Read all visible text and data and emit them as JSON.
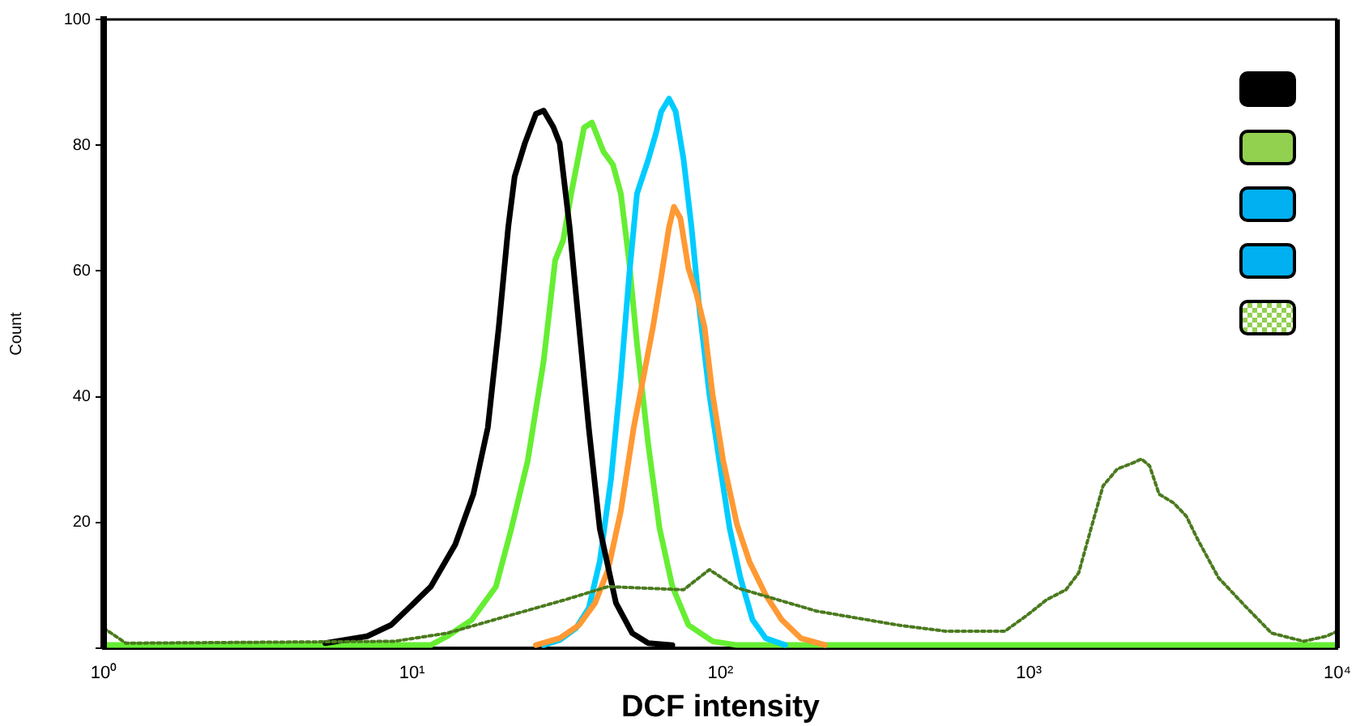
{
  "chart_data": {
    "type": "line",
    "xlabel": "DCF intensity",
    "ylabel": "Count",
    "log": "x",
    "grid": false,
    "marker": "none",
    "xlim": [
      1,
      10000
    ],
    "xticks": [
      {
        "value": 1,
        "label": "10⁰"
      },
      {
        "value": 10,
        "label": "10¹"
      },
      {
        "value": 100,
        "label": "10²"
      },
      {
        "value": 1000,
        "label": "10³"
      },
      {
        "value": 10000,
        "label": "10⁴"
      }
    ],
    "ylim": [
      0,
      100
    ],
    "yticks": [
      {
        "value": 0,
        "label": null
      },
      20,
      40,
      60,
      80,
      100
    ],
    "series": [
      {
        "color": "#4a7a1e",
        "line_style": "dotted",
        "x": [
          1,
          1.18,
          8.77,
          13.0,
          21.0,
          31.3,
          43.2,
          75.9,
          92.0,
          113,
          205,
          374,
          536,
          657,
          835,
          977,
          1140,
          1318,
          1450,
          1576,
          1738,
          1933,
          2180,
          2317,
          2461,
          2642,
          2944,
          3237,
          3524,
          4117,
          5047,
          6115,
          7776,
          9200,
          10000
        ],
        "values": [
          3.2,
          0.8,
          1.1,
          2.4,
          5.3,
          7.7,
          9.8,
          9.3,
          12.5,
          9.6,
          5.9,
          3.7,
          2.7,
          2.7,
          2.7,
          5.1,
          7.7,
          9.3,
          12.0,
          18.4,
          25.8,
          28.5,
          29.5,
          30.1,
          29.0,
          24.5,
          23.1,
          21.0,
          17.3,
          11.2,
          6.6,
          2.4,
          1.1,
          1.9,
          2.7
        ]
      },
      {
        "color": "#000000",
        "line_style": "solid",
        "x": [
          5.23,
          7.15,
          8.55,
          10,
          11.5,
          13.8,
          15.8,
          17.6,
          19.1,
          20.5,
          21.5,
          23.2,
          25.2,
          26.7,
          28.7,
          30.1,
          32.4,
          34.8,
          37.4,
          40.6,
          45.8,
          51.7,
          58.3,
          69.8
        ],
        "values": [
          0.8,
          1.9,
          3.7,
          6.9,
          9.8,
          16.5,
          24.5,
          35.1,
          51.1,
          67,
          75,
          80.3,
          85,
          85.5,
          82.9,
          80.3,
          67,
          51,
          35,
          19,
          7.2,
          2.4,
          0.8,
          0.5
        ]
      },
      {
        "color": "#ff9933",
        "line_style": "solid",
        "x": [
          25.2,
          30.1,
          34.8,
          39.2,
          43.2,
          47.5,
          52.3,
          56.9,
          60.4,
          64.2,
          68.1,
          70.6,
          74.1,
          78.7,
          83.5,
          88.7,
          94.2,
          102,
          113,
          124,
          140,
          158,
          182,
          218
        ],
        "values": [
          0.5,
          1.6,
          3.7,
          7.2,
          12.5,
          21.8,
          35.1,
          44.4,
          51.1,
          59,
          67,
          70.2,
          68.4,
          60.4,
          56.4,
          51.1,
          40.4,
          29.8,
          19.7,
          13.8,
          8.5,
          4.5,
          1.6,
          0.5
        ]
      },
      {
        "color": "#00ccff",
        "line_style": "solid",
        "x": [
          26.7,
          30.1,
          34.0,
          37.4,
          40.6,
          44.2,
          47.5,
          50.5,
          53.6,
          58.3,
          61.9,
          64.2,
          68.1,
          71.5,
          75.9,
          80.5,
          85.5,
          92.0,
          100,
          107,
          116,
          127,
          140,
          162
        ],
        "values": [
          0.5,
          1.3,
          3.2,
          6.4,
          13.8,
          27.1,
          43.1,
          59,
          72.3,
          77.7,
          82.1,
          85.3,
          87.4,
          85.4,
          77.7,
          67,
          53.7,
          40.4,
          28.5,
          19.1,
          11.2,
          4.5,
          1.6,
          0.5
        ]
      },
      {
        "color": "#66ee33",
        "line_style": "solid",
        "x": [
          1,
          11.5,
          13.0,
          15.6,
          18.7,
          21.0,
          23.7,
          26.7,
          29.1,
          30.9,
          32.8,
          36.1,
          38.3,
          41.7,
          44.8,
          47.5,
          50.5,
          53.6,
          58.3,
          63.4,
          69.8,
          78.7,
          94.2,
          113,
          10000
        ],
        "values": [
          0.5,
          0.5,
          1.9,
          4.5,
          9.8,
          19.1,
          29.8,
          45.7,
          61.7,
          64.9,
          72.3,
          82.8,
          83.6,
          79,
          76.9,
          72.3,
          61.7,
          48.4,
          32.4,
          19.1,
          9.8,
          3.7,
          1.1,
          0.5,
          0.5
        ]
      }
    ]
  }
}
